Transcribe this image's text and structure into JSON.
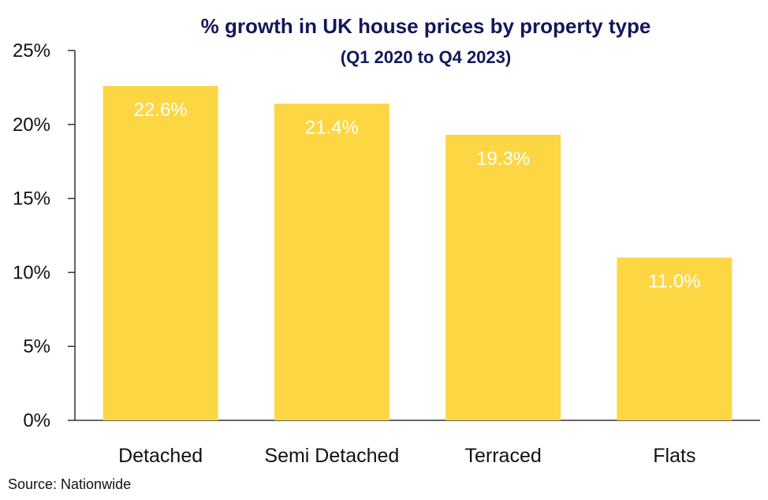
{
  "chart_data": {
    "type": "bar",
    "title": "% growth in UK house prices by property type",
    "subtitle": "(Q1 2020 to Q4 2023)",
    "categories": [
      "Detached",
      "Semi Detached",
      "Terraced",
      "Flats"
    ],
    "values": [
      22.6,
      21.4,
      19.3,
      11.0
    ],
    "data_labels": [
      "22.6%",
      "21.4%",
      "19.3%",
      "11.0%"
    ],
    "ylim": [
      0,
      25
    ],
    "yticks": [
      0,
      5,
      10,
      15,
      20,
      25
    ],
    "ytick_labels": [
      "0%",
      "5%",
      "10%",
      "15%",
      "20%",
      "25%"
    ],
    "xlabel": "",
    "ylabel": "",
    "grid": false,
    "legend": "none",
    "bar_color": "#fdd743",
    "data_label_color": "#ffffff",
    "axis_color": "#333333"
  },
  "source": "Source: Nationwide"
}
